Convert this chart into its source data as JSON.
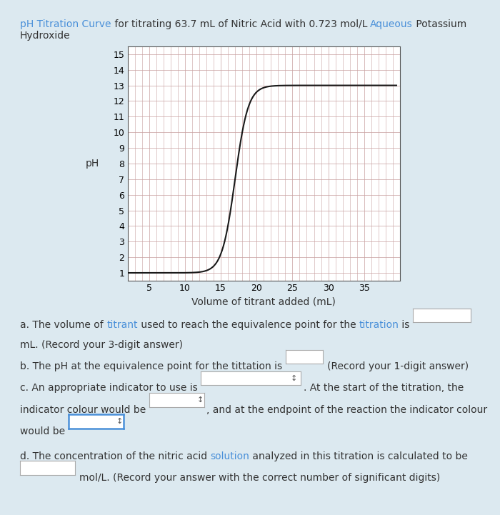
{
  "title_parts_line1": [
    {
      "text": "pH Titration Curve",
      "color": "#4a90d9"
    },
    {
      "text": " for titrating 63.7 mL of Nitric Acid with 0.723 mol/L ",
      "color": "#333333"
    },
    {
      "text": "Aqueous",
      "color": "#4a90d9"
    },
    {
      "text": " Potassium",
      "color": "#333333"
    }
  ],
  "title_parts_line2": [
    {
      "text": "Hydroxide",
      "color": "#333333"
    }
  ],
  "xlabel": "Volume of titrant added (mL)",
  "ylabel": "pH",
  "xlim": [
    2.0,
    40.0
  ],
  "ylim": [
    0.5,
    15.5
  ],
  "yticks": [
    1,
    2,
    3,
    4,
    5,
    6,
    7,
    8,
    9,
    10,
    11,
    12,
    13,
    14,
    15
  ],
  "xticks": [
    5,
    10,
    15,
    20,
    25,
    30,
    35
  ],
  "grid_color": "#c8a0a0",
  "curve_color": "#1a1a1a",
  "bg_color": "#dce9f0",
  "plot_bg_color": "#ffffff",
  "text_color": "#333333",
  "highlight_color": "#4a90d9",
  "font_size": 10,
  "title_fontsize": 10,
  "q_fontsize": 10,
  "box_border_color": "#aaaaaa",
  "box_border_blue": "#4a90d9"
}
